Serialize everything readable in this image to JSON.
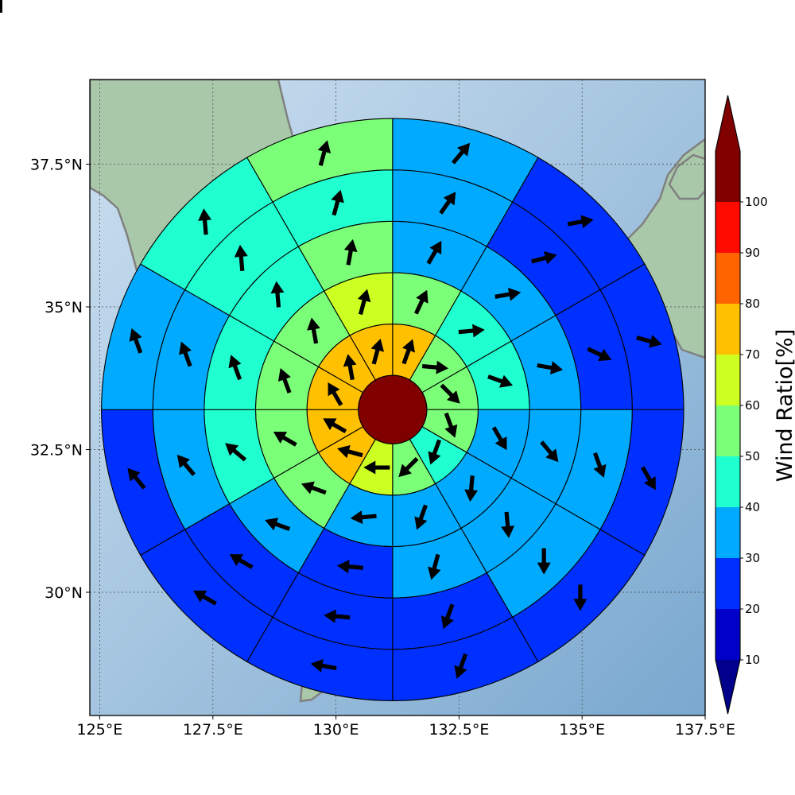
{
  "map": {
    "lon_range": [
      125,
      137.5
    ],
    "lat_range": [
      27.5,
      38.8
    ],
    "lon_gridlines": [
      125.2,
      127.5,
      130,
      132.5,
      135,
      137.5
    ],
    "lat_gridlines": [
      30,
      32.5,
      35,
      37.5
    ],
    "x_ticks": [
      {
        "value": 125.2,
        "label": "125°E"
      },
      {
        "value": 127.5,
        "label": "127.5°E"
      },
      {
        "value": 130,
        "label": "130°E"
      },
      {
        "value": 132.5,
        "label": "132.5°E"
      },
      {
        "value": 135,
        "label": "135°E"
      },
      {
        "value": 137.5,
        "label": "137.5°E"
      }
    ],
    "y_ticks": [
      {
        "value": 30,
        "label": "30°N"
      },
      {
        "value": 32.5,
        "label": "32.5°N"
      },
      {
        "value": 35,
        "label": "35°N"
      },
      {
        "value": 37.5,
        "label": "37.5°N"
      }
    ],
    "colors": {
      "sea_light": "#cde0f0",
      "sea_dark": "#7aa8cf",
      "land": "#a9c8aa",
      "land_highlight": "#d9dab6",
      "coastline": "#808080",
      "grid": "#444444"
    }
  },
  "chart_data": {
    "type": "polar-grid",
    "center": {
      "lon": 131.15,
      "lat": 33.2
    },
    "ring_edges_deg": [
      0.6,
      1.5,
      2.4,
      3.3,
      4.2,
      5.1
    ],
    "sectors": 12,
    "sector_order": "clockwise from north",
    "center_value": 100,
    "ring_values": [
      [
        75,
        55,
        55,
        55,
        45,
        55,
        65,
        75,
        75,
        75,
        75,
        75
      ],
      [
        55,
        45,
        45,
        35,
        35,
        35,
        35,
        55,
        55,
        55,
        55,
        65
      ],
      [
        35,
        35,
        35,
        35,
        35,
        35,
        25,
        35,
        45,
        45,
        45,
        55
      ],
      [
        35,
        25,
        25,
        35,
        35,
        25,
        25,
        25,
        35,
        35,
        45,
        45
      ],
      [
        35,
        25,
        25,
        25,
        25,
        25,
        25,
        25,
        25,
        35,
        45,
        55
      ],
      [
        35,
        25,
        25,
        25,
        25,
        15,
        15,
        25,
        25,
        25,
        45,
        45
      ]
    ],
    "arrow_headings_deg": [
      [
        20,
        95,
        135,
        160,
        200,
        225,
        270,
        285,
        300,
        330,
        350,
        15
      ],
      [
        25,
        85,
        110,
        150,
        185,
        200,
        265,
        290,
        300,
        340,
        350,
        15
      ],
      [
        30,
        80,
        100,
        140,
        175,
        195,
        275,
        290,
        310,
        340,
        355,
        10
      ],
      [
        35,
        75,
        115,
        160,
        180,
        200,
        275,
        300,
        320,
        340,
        355,
        15
      ],
      [
        40,
        80,
        105,
        150,
        180,
        200,
        280,
        300,
        320,
        340,
        355,
        15
      ],
      [
        55,
        80,
        140,
        165,
        200,
        230,
        280,
        300,
        330,
        350,
        0,
        20
      ]
    ],
    "colorbar": {
      "label": "Wind Ratio[%]",
      "ticks": [
        10,
        20,
        30,
        40,
        50,
        60,
        70,
        80,
        90,
        100
      ],
      "colors": [
        "#0000c8",
        "#0030ff",
        "#00aaff",
        "#20ffd0",
        "#7cff78",
        "#ccff22",
        "#ffc000",
        "#ff6400",
        "#ff0a00",
        "#800000"
      ],
      "under_color": "#00008c",
      "over_color": "#800000"
    }
  }
}
